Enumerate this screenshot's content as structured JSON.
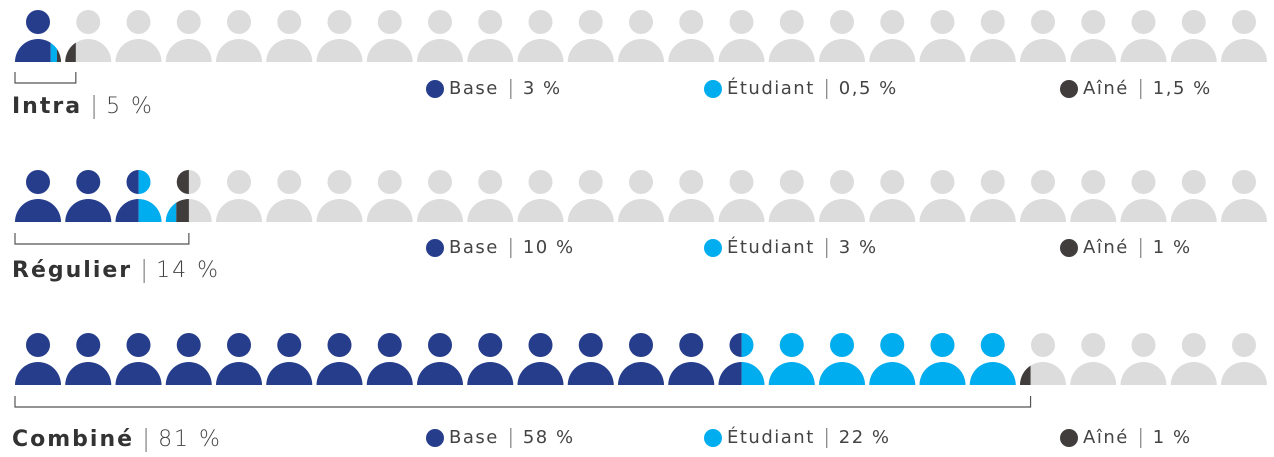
{
  "chart_data": [
    {
      "type": "pictogram",
      "title": "Intra",
      "total": 5,
      "total_label": "5 %",
      "xlim": [
        0,
        100
      ],
      "series": [
        {
          "name": "Base",
          "color": "#263d8c",
          "values": [
            3
          ],
          "value_labels": [
            "3 %"
          ]
        },
        {
          "name": "Étudiant",
          "color": "#00aeef",
          "values": [
            0.5
          ],
          "value_labels": [
            "0,5 %"
          ]
        },
        {
          "name": "Aîné",
          "color": "#403d3c",
          "values": [
            1.5
          ],
          "value_labels": [
            "1,5 %"
          ]
        }
      ]
    },
    {
      "type": "pictogram",
      "title": "Régulier",
      "total": 14,
      "total_label": "14 %",
      "xlim": [
        0,
        100
      ],
      "series": [
        {
          "name": "Base",
          "color": "#263d8c",
          "values": [
            10
          ],
          "value_labels": [
            "10 %"
          ]
        },
        {
          "name": "Étudiant",
          "color": "#00aeef",
          "values": [
            3
          ],
          "value_labels": [
            "3 %"
          ]
        },
        {
          "name": "Aîné",
          "color": "#403d3c",
          "values": [
            1
          ],
          "value_labels": [
            "1 %"
          ]
        }
      ]
    },
    {
      "type": "pictogram",
      "title": "Combiné",
      "total": 81,
      "total_label": "81 %",
      "xlim": [
        0,
        100
      ],
      "series": [
        {
          "name": "Base",
          "color": "#263d8c",
          "values": [
            58
          ],
          "value_labels": [
            "58 %"
          ]
        },
        {
          "name": "Étudiant",
          "color": "#00aeef",
          "values": [
            22
          ],
          "value_labels": [
            "22 %"
          ]
        },
        {
          "name": "Aîné",
          "color": "#403d3c",
          "values": [
            1
          ],
          "value_labels": [
            "1 %"
          ]
        }
      ]
    }
  ]
}
